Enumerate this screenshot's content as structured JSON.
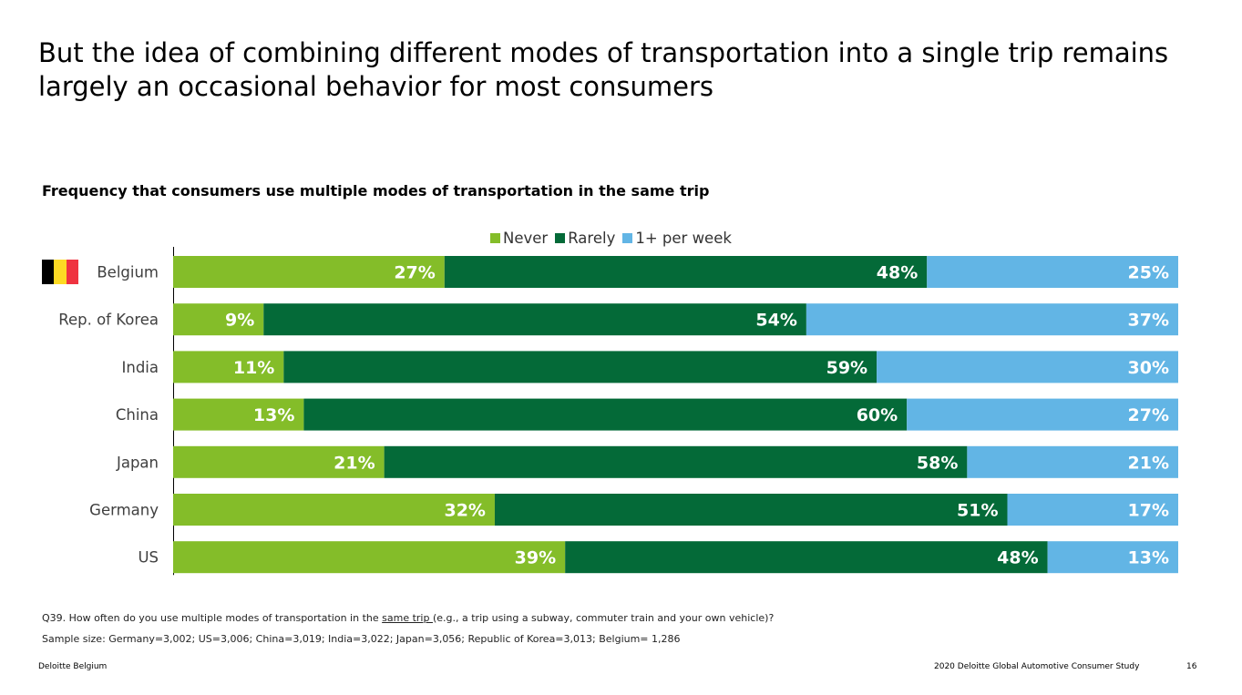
{
  "headline": "But the idea of combining different modes of transportation into a single trip remains largely an occasional behavior for most consumers",
  "chart_data": {
    "type": "bar",
    "orientation": "horizontal",
    "stacked": true,
    "title": "Frequency that consumers use multiple modes of transportation in the same trip",
    "legend_position": "top",
    "categories": [
      "Belgium",
      "Rep. of Korea",
      "India",
      "China",
      "Japan",
      "Germany",
      "US"
    ],
    "series": [
      {
        "name": "Never",
        "color": "#84BD29",
        "values": [
          27,
          9,
          11,
          13,
          21,
          32,
          39
        ]
      },
      {
        "name": "Rarely",
        "color": "#046A38",
        "values": [
          48,
          54,
          59,
          60,
          58,
          51,
          48
        ]
      },
      {
        "name": "1+ per week",
        "color": "#62B5E5",
        "values": [
          25,
          37,
          30,
          27,
          21,
          17,
          13
        ]
      }
    ],
    "value_suffix": "%",
    "xlim": [
      0,
      100
    ],
    "grid": false,
    "flag_category": "Belgium",
    "flag_icon": "belgium-flag-icon"
  },
  "footnotes": {
    "question_pre": "Q39. How often do you use multiple modes of transportation in the ",
    "question_underlined": "same trip ",
    "question_post": "(e.g., a trip using a subway, commuter train and your own vehicle)?",
    "sample": "Sample size: Germany=3,002; US=3,006; China=3,019; India=3,022; Japan=3,056; Republic of Korea=3,013; Belgium= 1,286"
  },
  "footer": {
    "left": "Deloitte Belgium",
    "study": "2020 Deloitte Global Automotive Consumer Study",
    "page": "16"
  }
}
